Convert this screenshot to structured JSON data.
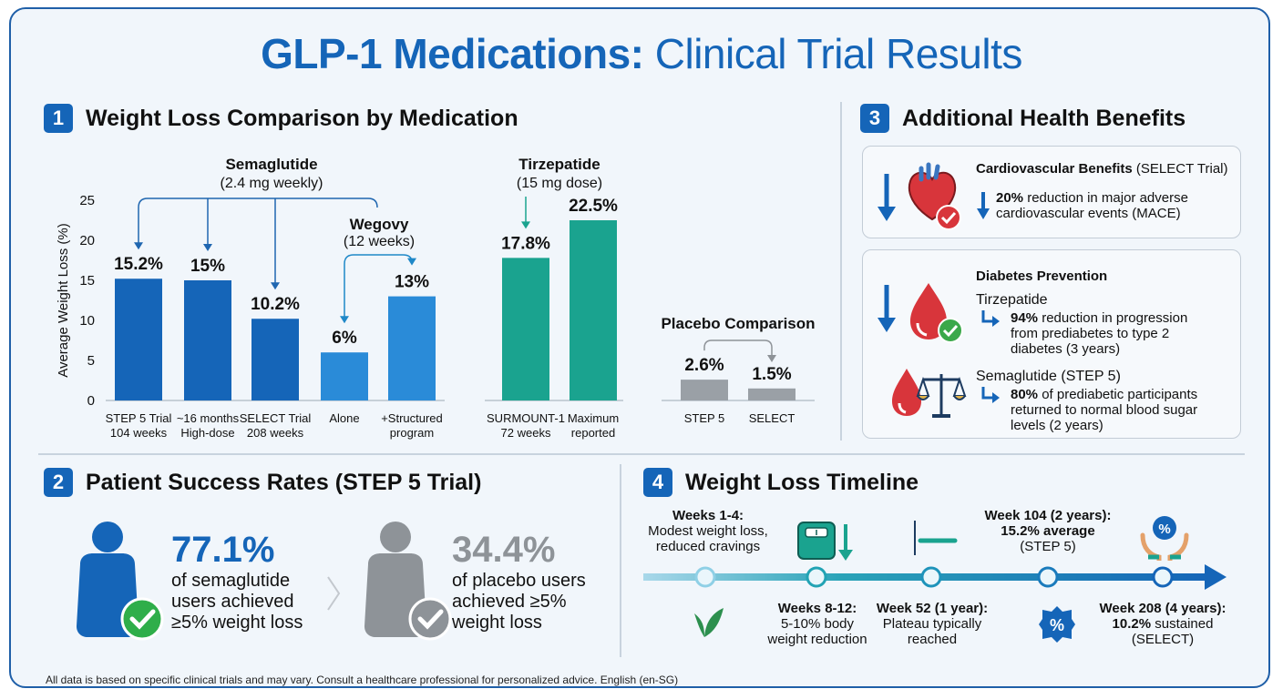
{
  "title": {
    "bold": "GLP-1 Medications:",
    "light": "Clinical Trial Results"
  },
  "sections": {
    "s1": {
      "num": "1",
      "title": "Weight Loss Comparison by Medication"
    },
    "s2": {
      "num": "2",
      "title": "Patient Success Rates (STEP 5 Trial)"
    },
    "s3": {
      "num": "3",
      "title": "Additional Health Benefits"
    },
    "s4": {
      "num": "4",
      "title": "Weight Loss Timeline"
    }
  },
  "chart_data": {
    "type": "bar",
    "ylabel": "Average Weight Loss (%)",
    "ylim": [
      0,
      25
    ],
    "yticks": [
      "0",
      "5",
      "10",
      "15",
      "20",
      "25"
    ],
    "groups": {
      "semaglutide": {
        "title": "Semaglutide",
        "subtitle": "(2.4 mg weekly)"
      },
      "wegovy": {
        "title": "Wegovy",
        "subtitle": "(12 weeks)"
      },
      "tirzepatide": {
        "title": "Tirzepatide",
        "subtitle": "(15 mg dose)"
      },
      "placebo": {
        "title": "Placebo Comparison"
      }
    },
    "bars": [
      {
        "label": "15.2%",
        "value": 15.2,
        "cat1": "STEP 5 Trial",
        "cat2": "104 weeks",
        "color": "#1565b8"
      },
      {
        "label": "15%",
        "value": 15.0,
        "cat1": "~16 months",
        "cat2": "High-dose",
        "color": "#1565b8"
      },
      {
        "label": "10.2%",
        "value": 10.2,
        "cat1": "SELECT Trial",
        "cat2": "208 weeks",
        "color": "#1565b8"
      },
      {
        "label": "6%",
        "value": 6.0,
        "cat1": "Alone",
        "cat2": "",
        "color": "#2a8bd8"
      },
      {
        "label": "13%",
        "value": 13.0,
        "cat1": "+Structured",
        "cat2": "program",
        "color": "#2a8bd8"
      },
      {
        "label": "17.8%",
        "value": 17.8,
        "cat1": "SURMOUNT-1",
        "cat2": "72 weeks",
        "color": "#1aa38f"
      },
      {
        "label": "22.5%",
        "value": 22.5,
        "cat1": "Maximum",
        "cat2": "reported",
        "color": "#1aa38f"
      },
      {
        "label": "2.6%",
        "value": 2.6,
        "cat1": "STEP 5",
        "cat2": "",
        "color": "#9aa0a6"
      },
      {
        "label": "1.5%",
        "value": 1.5,
        "cat1": "SELECT",
        "cat2": "",
        "color": "#9aa0a6"
      }
    ]
  },
  "success": {
    "sema": {
      "pct": "77.1%",
      "l1": "of semaglutide",
      "l2": "users achieved",
      "l3": "≥5% weight loss",
      "color": "#1565b8"
    },
    "placebo": {
      "pct": "34.4%",
      "l1": "of placebo users",
      "l2": "achieved ≥5%",
      "l3": "weight loss",
      "color": "#8e9398"
    }
  },
  "benefits": {
    "cardio": {
      "heading": "Cardiovascular Benefits",
      "trial": "(SELECT Trial)",
      "pct": "20%",
      "l1": "reduction in major adverse",
      "l2": "cardiovascular events (MACE)"
    },
    "diabetes": {
      "heading": "Diabetes Prevention",
      "tir_name": "Tirzepatide",
      "tir_pct": "94%",
      "tir_l1": "reduction in progression",
      "tir_l2": "from prediabetes to type 2",
      "tir_l3": "diabetes (3 years)",
      "sem_name": "Semaglutide (STEP 5)",
      "sem_pct": "80%",
      "sem_l1": "of prediabetic participants",
      "sem_l2": "returned to normal blood sugar",
      "sem_l3": "levels (2 years)"
    }
  },
  "timeline": {
    "w1": {
      "head": "Weeks 1-4:",
      "l1": "Modest weight loss,",
      "l2": "reduced cravings"
    },
    "w8": {
      "head": "Weeks 8-12:",
      "l1": "5-10% body",
      "l2": "weight reduction"
    },
    "w52": {
      "head": "Week 52 (1 year):",
      "l1": "Plateau typically",
      "l2": "reached"
    },
    "w104": {
      "head": "Week 104 (2 years):",
      "l1": "15.2% average",
      "l2": "(STEP 5)"
    },
    "w208": {
      "head": "Week 208 (4 years):",
      "pct": "10.2%",
      "l1": "sustained",
      "l2": "(SELECT)"
    },
    "percent_glyph": "%"
  },
  "footer": "All data is based on specific clinical trials and may vary. Consult a healthcare professional for personalized advice. English (en-SG)"
}
